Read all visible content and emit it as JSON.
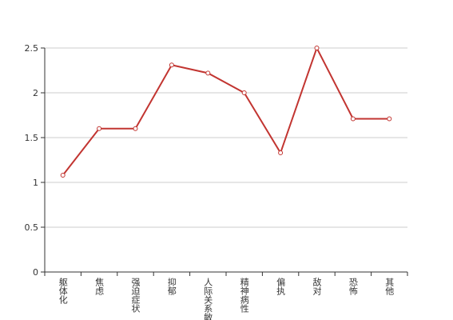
{
  "chart_data": {
    "type": "line",
    "categories": [
      "躯体化",
      "焦虑",
      "强迫症状",
      "抑郁",
      "人际关系敏感",
      "精神病性",
      "偏执",
      "敌对",
      "恐怖",
      "其他"
    ],
    "values": [
      1.08,
      1.6,
      1.6,
      2.31,
      2.22,
      2.0,
      1.33,
      2.5,
      1.71,
      1.71
    ],
    "color": "#c23531",
    "ylim": [
      0,
      2.5
    ],
    "yticks": [
      0,
      0.5,
      1,
      1.5,
      2,
      2.5
    ],
    "grid": true
  }
}
